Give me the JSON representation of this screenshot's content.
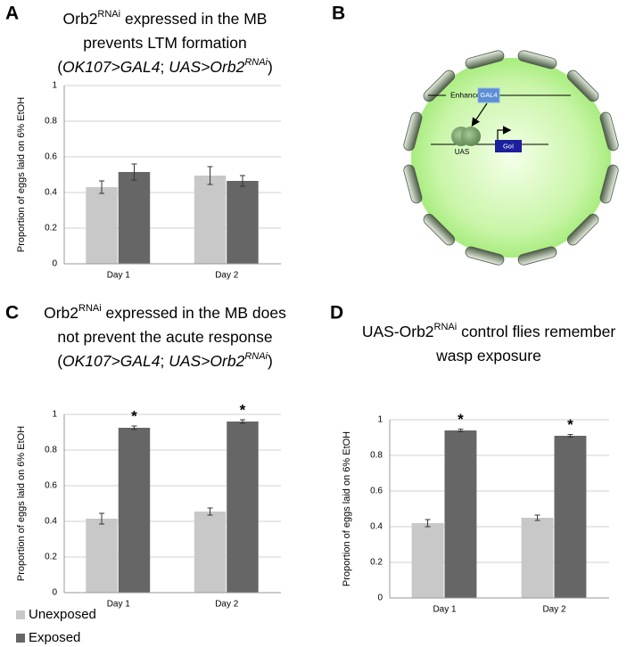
{
  "chart_data": [
    {
      "type": "bar",
      "panel_label": "A",
      "title": [
        [
          {
            "text": "Orb2"
          },
          {
            "text": "RNAi",
            "style": "sup"
          },
          {
            "text": " expressed in the MB"
          }
        ],
        [
          {
            "text": "prevents LTM formation"
          }
        ],
        [
          {
            "text": "("
          },
          {
            "text": "OK107>GAL4",
            "style": "italic"
          },
          {
            "text": "; "
          },
          {
            "text": "UAS>Orb2",
            "style": "italic"
          },
          {
            "text": "RNAi",
            "style": "italic-sup"
          },
          {
            "text": ")"
          }
        ]
      ],
      "y_label": "Proportion of eggs laid on 6% EtOH",
      "categories": [
        "Day 1",
        "Day 2"
      ],
      "series": [
        {
          "name": "Unexposed",
          "color": "#c8c8c8",
          "values": [
            0.43,
            0.495
          ],
          "errors": [
            0.035,
            0.05
          ]
        },
        {
          "name": "Exposed",
          "color": "#666666",
          "values": [
            0.515,
            0.465
          ],
          "errors": [
            0.045,
            0.03
          ]
        }
      ],
      "ylim": [
        0,
        1
      ],
      "yticks": [
        0,
        0.2,
        0.4,
        0.6,
        0.8,
        1
      ],
      "grid": true
    },
    {
      "type": "bar",
      "panel_label": "C",
      "title": [
        [
          {
            "text": "Orb2"
          },
          {
            "text": "RNAi",
            "style": "sup"
          },
          {
            "text": " expressed in the MB does"
          }
        ],
        [
          {
            "text": "not prevent the acute response"
          }
        ],
        [
          {
            "text": "("
          },
          {
            "text": "OK107>GAL4",
            "style": "italic"
          },
          {
            "text": "; "
          },
          {
            "text": "UAS>Orb2",
            "style": "italic"
          },
          {
            "text": "RNAi",
            "style": "italic-sup"
          },
          {
            "text": ")"
          }
        ]
      ],
      "y_label": "Proportion of eggs laid on 6% EtOH",
      "categories": [
        "Day 1",
        "Day 2"
      ],
      "series": [
        {
          "color": "#c8c8c8",
          "values": [
            0.415,
            0.455
          ],
          "errors": [
            0.03,
            0.02
          ]
        },
        {
          "color": "#666666",
          "values": [
            0.925,
            0.96
          ],
          "errors": [
            0.01,
            0.01
          ],
          "annotations": [
            "*",
            "*"
          ]
        }
      ],
      "ylim": [
        0,
        1
      ],
      "yticks": [
        0,
        0.2,
        0.4,
        0.6,
        0.8,
        1
      ],
      "grid": true
    },
    {
      "type": "bar",
      "panel_label": "D",
      "title": [
        [
          {
            "text": "UAS-Orb2"
          },
          {
            "text": "RNAi",
            "style": "sup"
          },
          {
            "text": " control flies remember"
          }
        ],
        [
          {
            "text": "wasp exposure"
          }
        ]
      ],
      "y_label": "Proportion of eggs laid on 6% EtOH",
      "categories": [
        "Day 1",
        "Day 2"
      ],
      "series": [
        {
          "color": "#c8c8c8",
          "values": [
            0.42,
            0.45
          ],
          "errors": [
            0.02,
            0.015
          ]
        },
        {
          "color": "#666666",
          "values": [
            0.94,
            0.91
          ],
          "errors": [
            0.007,
            0.007
          ],
          "annotations": [
            "*",
            "*"
          ]
        }
      ],
      "ylim": [
        0,
        1
      ],
      "yticks": [
        0,
        0.2,
        0.4,
        0.6,
        0.8,
        1
      ],
      "grid": true
    }
  ],
  "diagram": {
    "panel_label": "B",
    "labels": {
      "enhancer": "Enhancer",
      "gal4": "GAL4",
      "uas": "UAS",
      "goi": "GoI"
    }
  }
}
